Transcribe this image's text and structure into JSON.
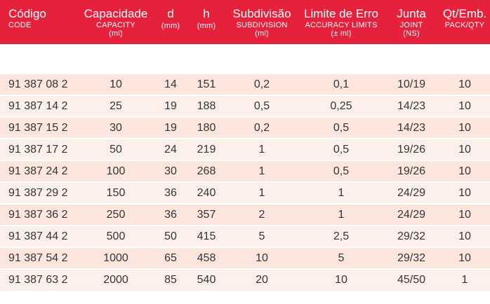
{
  "header": {
    "code": {
      "pt": "Código",
      "en": "CODE"
    },
    "capacity": {
      "pt": "Capacidade",
      "en": "CAPACITY",
      "unit": "(ml)"
    },
    "d": {
      "pt": "d",
      "unit": "(mm)"
    },
    "h": {
      "pt": "h",
      "unit": "(mm)"
    },
    "subdivision": {
      "pt": "Subdivisão",
      "en": "SUBDIVISION",
      "unit": "(ml)"
    },
    "limit": {
      "pt": "Limite de Erro",
      "en": "ACCURACY LIMITS",
      "unit": "(± ml)"
    },
    "joint": {
      "pt": "Junta",
      "en": "JOINT",
      "unit": "(NS)"
    },
    "pack": {
      "pt": "Qt/Emb.",
      "en": "PACK/QTY"
    }
  },
  "rows": [
    [
      "91 387 08 2",
      "10",
      "14",
      "151",
      "0,2",
      "0,1",
      "10/19",
      "10"
    ],
    [
      "91 387 14 2",
      "25",
      "19",
      "188",
      "0,5",
      "0,25",
      "14/23",
      "10"
    ],
    [
      "91 387 15 2",
      "30",
      "19",
      "180",
      "0,2",
      "0,5",
      "14/23",
      "10"
    ],
    [
      "91 387 17 2",
      "50",
      "24",
      "219",
      "1",
      "0,5",
      "19/26",
      "10"
    ],
    [
      "91 387 24 2",
      "100",
      "30",
      "268",
      "1",
      "0,5",
      "19/26",
      "10"
    ],
    [
      "91 387 29 2",
      "150",
      "36",
      "240",
      "1",
      "1",
      "24/29",
      "10"
    ],
    [
      "91 387 36 2",
      "250",
      "36",
      "357",
      "2",
      "1",
      "24/29",
      "10"
    ],
    [
      "91 387 44 2",
      "500",
      "50",
      "415",
      "5",
      "2,5",
      "29/32",
      "10"
    ],
    [
      "91 387 54 2",
      "1000",
      "65",
      "458",
      "10",
      "5",
      "29/32",
      "10"
    ],
    [
      "91 387 63 2",
      "2000",
      "85",
      "540",
      "20",
      "10",
      "45/50",
      "1"
    ]
  ],
  "colors": {
    "header_bg": "#e5213c",
    "row_even": "#fde6de",
    "row_odd": "#fdf0eb"
  }
}
